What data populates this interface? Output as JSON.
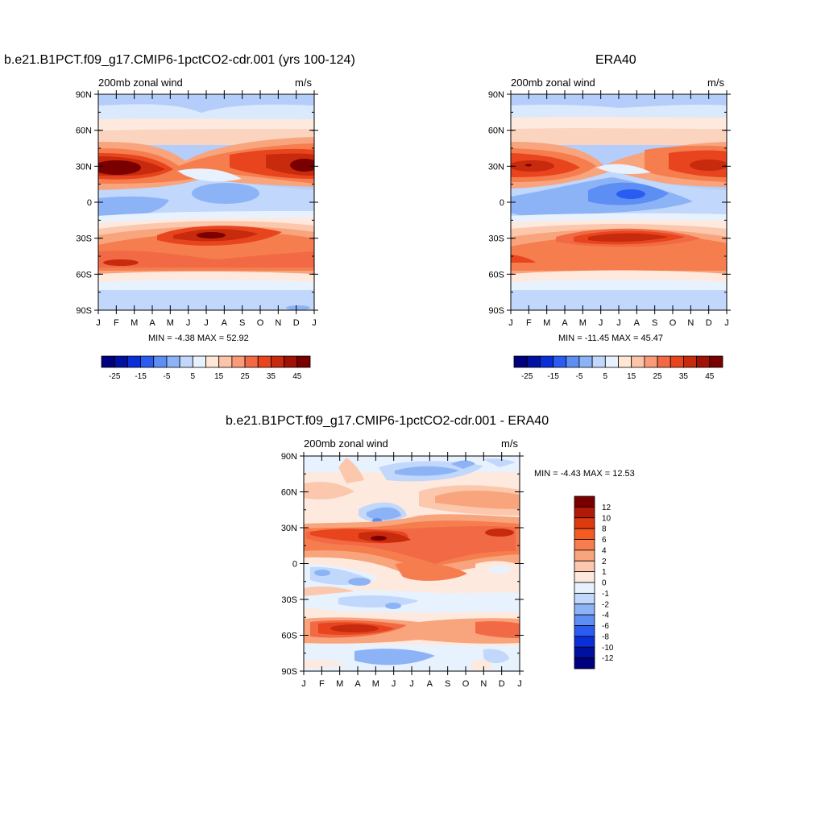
{
  "panels": [
    {
      "title": "b.e21.B1PCT.f09_g17.CMIP6-1pctCO2-cdr.001 (yrs 100-124)",
      "left_label": "200mb zonal wind",
      "right_label": "m/s",
      "minmax": "MIN =  -4.38 MAX =  52.92"
    },
    {
      "title": "ERA40",
      "left_label": "200mb zonal wind",
      "right_label": "m/s",
      "minmax": "MIN = -11.45 MAX =  45.47"
    },
    {
      "title": "b.e21.B1PCT.f09_g17.CMIP6-1pctCO2-cdr.001 - ERA40",
      "left_label": "200mb zonal wind",
      "right_label": "m/s",
      "minmax": "MIN =  -4.43 MAX =  12.53"
    }
  ],
  "chart_data": [
    {
      "type": "heatmap",
      "title": "b.e21.B1PCT.f09_g17.CMIP6-1pctCO2-cdr.001 (yrs 100-124)",
      "xlabel": "",
      "ylabel": "",
      "x_ticks": [
        "J",
        "F",
        "M",
        "A",
        "M",
        "J",
        "J",
        "A",
        "S",
        "O",
        "N",
        "D",
        "J"
      ],
      "y_ticks": [
        "90N",
        "60N",
        "30N",
        "0",
        "30S",
        "60S",
        "90S"
      ],
      "units": "m/s",
      "min": -4.38,
      "max": 52.92,
      "colorbar_labels": [
        "-25",
        "-15",
        "-5",
        "5",
        "15",
        "25",
        "35",
        "45"
      ],
      "colorbar_colors": [
        "#00007f",
        "#0010a0",
        "#0a2fd8",
        "#2a5cf2",
        "#5c8ef4",
        "#8db3f7",
        "#c1d7fb",
        "#e8f2fe",
        "#ffe6d5",
        "#fcc4a8",
        "#f99a78",
        "#f26a45",
        "#e8451e",
        "#c72a0c",
        "#a01106",
        "#7a0000"
      ],
      "features": [
        {
          "lat": 28,
          "month": 1.5,
          "value": 50
        },
        {
          "lat": 30,
          "month": 12.0,
          "value": 45
        },
        {
          "lat": -28,
          "month": 7.0,
          "value": 46
        },
        {
          "lat": -52,
          "month": 2.0,
          "value": 34
        },
        {
          "lat": 0,
          "month": 8.0,
          "value": -3
        }
      ]
    },
    {
      "type": "heatmap",
      "title": "ERA40",
      "xlabel": "",
      "ylabel": "",
      "x_ticks": [
        "J",
        "F",
        "M",
        "A",
        "M",
        "J",
        "J",
        "A",
        "S",
        "O",
        "N",
        "D",
        "J"
      ],
      "y_ticks": [
        "90N",
        "60N",
        "30N",
        "0",
        "30S",
        "60S",
        "90S"
      ],
      "units": "m/s",
      "min": -11.45,
      "max": 45.47,
      "colorbar_labels": [
        "-25",
        "-15",
        "-5",
        "5",
        "15",
        "25",
        "35",
        "45"
      ],
      "colorbar_colors": [
        "#00007f",
        "#0010a0",
        "#0a2fd8",
        "#2a5cf2",
        "#5c8ef4",
        "#8db3f7",
        "#c1d7fb",
        "#e8f2fe",
        "#ffe6d5",
        "#fcc4a8",
        "#f99a78",
        "#f26a45",
        "#e8451e",
        "#c72a0c",
        "#a01106",
        "#7a0000"
      ],
      "features": [
        {
          "lat": 30,
          "month": 1.5,
          "value": 40
        },
        {
          "lat": 30,
          "month": 12.0,
          "value": 40
        },
        {
          "lat": -28,
          "month": 7.5,
          "value": 40
        },
        {
          "lat": 5,
          "month": 7.5,
          "value": -11
        }
      ]
    },
    {
      "type": "heatmap",
      "title": "b.e21.B1PCT.f09_g17.CMIP6-1pctCO2-cdr.001 - ERA40",
      "xlabel": "",
      "ylabel": "",
      "x_ticks": [
        "J",
        "F",
        "M",
        "A",
        "M",
        "J",
        "J",
        "A",
        "S",
        "O",
        "N",
        "D",
        "J"
      ],
      "y_ticks": [
        "90N",
        "60N",
        "30N",
        "0",
        "30S",
        "60S",
        "90S"
      ],
      "units": "m/s",
      "min": -4.43,
      "max": 12.53,
      "colorbar_labels": [
        "12",
        "10",
        "8",
        "6",
        "4",
        "2",
        "1",
        "0",
        "-1",
        "-2",
        "-4",
        "-6",
        "-8",
        "-10",
        "-12"
      ],
      "colorbar_colors": [
        "#7a0000",
        "#b21a08",
        "#de3a10",
        "#f45a22",
        "#f57d4e",
        "#f8a47d",
        "#fbc8ad",
        "#fde9de",
        "#e8f2fe",
        "#c1d7fb",
        "#8db3f7",
        "#5c8ef4",
        "#2a5cf2",
        "#0a2fd8",
        "#0010a0",
        "#00007f"
      ],
      "features": [
        {
          "lat": 20,
          "month": 5.0,
          "value": 12
        },
        {
          "lat": 25,
          "month": 1.5,
          "value": 8
        },
        {
          "lat": 37,
          "month": 5.0,
          "value": -4
        },
        {
          "lat": -55,
          "month": 4.0,
          "value": 8
        },
        {
          "lat": -80,
          "month": 5.5,
          "value": -3
        }
      ]
    }
  ]
}
